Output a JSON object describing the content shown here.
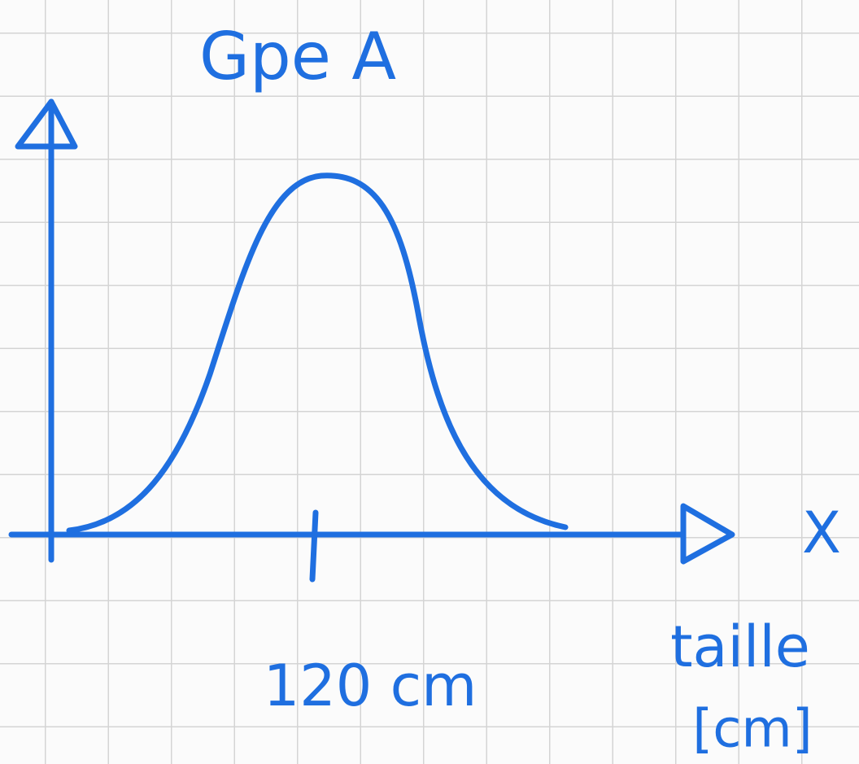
{
  "title": "Gpe A",
  "axis": {
    "x_symbol": "X",
    "tick_label": "120 cm",
    "x_label": [
      "taille",
      "[cm]"
    ]
  }
}
